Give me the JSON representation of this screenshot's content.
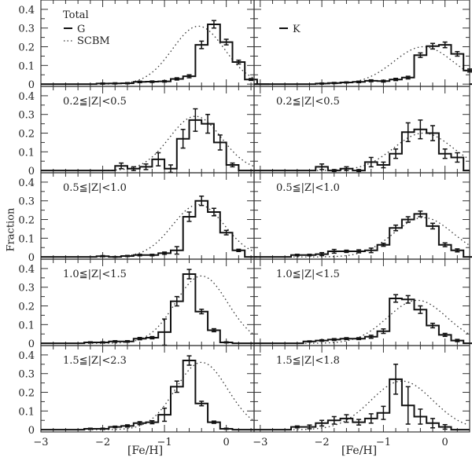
{
  "chart_data": {
    "type": "bar",
    "subtype": "step-histogram-grid",
    "grid": {
      "rows": 5,
      "cols": 2
    },
    "xlabel": "[Fe/H]",
    "ylabel": "Fraction",
    "ylim": [
      0,
      0.45
    ],
    "yticks": [
      0,
      0.1,
      0.2,
      0.3,
      0.4
    ],
    "xticks": [
      -3,
      -2,
      -1,
      0
    ],
    "bin_width": 0.2,
    "legend": [
      {
        "label": "G",
        "style": "solid",
        "panel": "top-left"
      },
      {
        "label": "SCBM",
        "style": "dotted",
        "panel": "top-left"
      },
      {
        "label": "K",
        "style": "solid",
        "panel": "top-right"
      }
    ],
    "panels": [
      {
        "col": "G",
        "label": "Total",
        "xlim": [
          -3.0,
          0.45
        ],
        "bin_left": -2.1,
        "values": [
          0.003,
          0.004,
          0.005,
          0.012,
          0.013,
          0.015,
          0.028,
          0.042,
          0.21,
          0.32,
          0.225,
          0.118,
          0.025,
          0.0
        ],
        "errors": [
          0.003,
          0.003,
          0.003,
          0.004,
          0.004,
          0.004,
          0.006,
          0.008,
          0.02,
          0.02,
          0.015,
          0.01,
          0.005,
          0
        ],
        "model_peak": 0.31,
        "model_mu": -0.45,
        "model_sigma": 0.42
      },
      {
        "col": "K",
        "label": "",
        "xlim": [
          -3.1,
          0.4
        ],
        "bin_left": -2.1,
        "values": [
          0.003,
          0.006,
          0.009,
          0.012,
          0.018,
          0.016,
          0.025,
          0.035,
          0.155,
          0.203,
          0.21,
          0.162,
          0.073,
          0.05,
          0.0
        ],
        "errors": [
          0.003,
          0.003,
          0.003,
          0.004,
          0.005,
          0.005,
          0.006,
          0.007,
          0.012,
          0.015,
          0.015,
          0.012,
          0.008,
          0.008,
          0
        ],
        "model_peak": 0.2,
        "model_mu": -0.35,
        "model_sigma": 0.48
      },
      {
        "col": "G",
        "label": "0.2≦|Z|<0.5",
        "xlim": [
          -3.0,
          0.45
        ],
        "bin_left": -1.8,
        "values": [
          0.025,
          0.01,
          0.02,
          0.06,
          0.01,
          0.17,
          0.27,
          0.25,
          0.15,
          0.03,
          0.0
        ],
        "errors": [
          0.015,
          0.01,
          0.015,
          0.035,
          0.02,
          0.05,
          0.06,
          0.05,
          0.04,
          0.01,
          0
        ],
        "model_peak": 0.29,
        "model_mu": -0.5,
        "model_sigma": 0.42
      },
      {
        "col": "K",
        "label": "0.2≦|Z|<0.5",
        "xlim": [
          -3.1,
          0.4
        ],
        "bin_left": -2.1,
        "values": [
          0.02,
          0.0,
          0.01,
          0.0,
          0.045,
          0.03,
          0.09,
          0.205,
          0.22,
          0.2,
          0.09,
          0.07
        ],
        "errors": [
          0.015,
          0.005,
          0.01,
          0.005,
          0.025,
          0.015,
          0.025,
          0.05,
          0.05,
          0.04,
          0.025,
          0.025
        ],
        "model_peak": 0.2,
        "model_mu": -0.35,
        "model_sigma": 0.48
      },
      {
        "col": "G",
        "label": "0.5≦|Z|<1.0",
        "xlim": [
          -3.0,
          0.45
        ],
        "bin_left": -2.1,
        "values": [
          0.004,
          0.0,
          0.005,
          0.01,
          0.01,
          0.02,
          0.035,
          0.215,
          0.3,
          0.24,
          0.13,
          0.035,
          0.0
        ],
        "errors": [
          0.003,
          0.002,
          0.003,
          0.004,
          0.004,
          0.006,
          0.02,
          0.025,
          0.025,
          0.02,
          0.012,
          0.006,
          0
        ],
        "model_peak": 0.28,
        "model_mu": -0.45,
        "model_sigma": 0.42
      },
      {
        "col": "K",
        "label": "0.5≦|Z|<1.0",
        "xlim": [
          -3.1,
          0.4
        ],
        "bin_left": -2.5,
        "values": [
          0.01,
          0.01,
          0.015,
          0.03,
          0.03,
          0.03,
          0.035,
          0.065,
          0.155,
          0.2,
          0.23,
          0.165,
          0.065,
          0.035,
          0.0
        ],
        "errors": [
          0.004,
          0.004,
          0.008,
          0.01,
          0.006,
          0.008,
          0.012,
          0.008,
          0.015,
          0.015,
          0.015,
          0.015,
          0.01,
          0.008,
          0
        ],
        "model_peak": 0.21,
        "model_mu": -0.35,
        "model_sigma": 0.48
      },
      {
        "col": "G",
        "label": "1.0≦|Z|<1.5",
        "xlim": [
          -3.0,
          0.45
        ],
        "bin_left": -2.3,
        "values": [
          0.005,
          0.005,
          0.01,
          0.01,
          0.025,
          0.03,
          0.06,
          0.225,
          0.37,
          0.17,
          0.07,
          0.005,
          0.0
        ],
        "errors": [
          0.003,
          0.003,
          0.004,
          0.004,
          0.006,
          0.006,
          0.07,
          0.025,
          0.025,
          0.012,
          0.008,
          0.003,
          0
        ],
        "model_peak": 0.36,
        "model_mu": -0.4,
        "model_sigma": 0.42
      },
      {
        "col": "K",
        "label": "1.0≦|Z|<1.5",
        "xlim": [
          -3.1,
          0.4
        ],
        "bin_left": -2.3,
        "values": [
          0.01,
          0.015,
          0.02,
          0.025,
          0.025,
          0.035,
          0.065,
          0.24,
          0.235,
          0.18,
          0.095,
          0.045,
          0.015,
          0.0
        ],
        "errors": [
          0.003,
          0.004,
          0.005,
          0.005,
          0.005,
          0.008,
          0.012,
          0.02,
          0.02,
          0.02,
          0.012,
          0.008,
          0.006,
          0
        ],
        "model_peak": 0.23,
        "model_mu": -0.45,
        "model_sigma": 0.48
      },
      {
        "col": "G",
        "label": "1.5≦|Z|<2.3",
        "xlim": [
          -3.0,
          0.45
        ],
        "bin_left": -2.3,
        "values": [
          0.005,
          0.005,
          0.015,
          0.02,
          0.035,
          0.04,
          0.08,
          0.23,
          0.37,
          0.14,
          0.04,
          0.005,
          0.0
        ],
        "errors": [
          0.003,
          0.003,
          0.004,
          0.006,
          0.008,
          0.008,
          0.035,
          0.03,
          0.025,
          0.012,
          0.006,
          0.003,
          0
        ],
        "model_peak": 0.36,
        "model_mu": -0.4,
        "model_sigma": 0.42
      },
      {
        "col": "K",
        "label": "1.5≦|Z|<1.8",
        "xlim": [
          -3.1,
          0.4
        ],
        "bin_left": -2.5,
        "values": [
          0.015,
          0.015,
          0.035,
          0.05,
          0.06,
          0.04,
          0.06,
          0.09,
          0.27,
          0.13,
          0.07,
          0.035,
          0.015,
          0.0
        ],
        "errors": [
          0.005,
          0.01,
          0.015,
          0.02,
          0.02,
          0.015,
          0.025,
          0.035,
          0.08,
          0.1,
          0.04,
          0.025,
          0.012,
          0
        ],
        "model_peak": 0.26,
        "model_mu": -0.7,
        "model_sigma": 0.5
      }
    ]
  }
}
